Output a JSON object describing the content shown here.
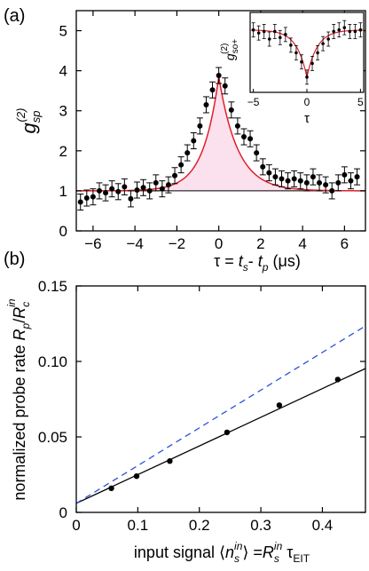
{
  "chart_data": [
    {
      "panel_label": "(a)",
      "type": "scatter",
      "xlabel": "τ = t_s - t_p (μs)",
      "ylabel": "g_sp^(2)",
      "xlim": [
        -6.8,
        7.0
      ],
      "ylim": [
        0,
        5.5
      ],
      "xticks": [
        -6,
        -4,
        -2,
        0,
        2,
        4,
        6
      ],
      "yticks": [
        0,
        1,
        2,
        3,
        4,
        5
      ],
      "baseline": 1.0,
      "fit_color": "#e0202a",
      "fill_color": "#fbe0ee",
      "series": [
        {
          "values_x": [
            -6.6,
            -6.3,
            -6.0,
            -5.7,
            -5.4,
            -5.1,
            -4.8,
            -4.5,
            -4.2,
            -3.9,
            -3.6,
            -3.3,
            -3.0,
            -2.7,
            -2.4,
            -2.1,
            -1.8,
            -1.5,
            -1.2,
            -0.9,
            -0.6,
            -0.3,
            0.0,
            0.3,
            0.6,
            0.9,
            1.2,
            1.5,
            1.8,
            2.1,
            2.4,
            2.7,
            3.0,
            3.3,
            3.6,
            3.9,
            4.2,
            4.5,
            4.8,
            5.1,
            5.4,
            5.7,
            6.0,
            6.3,
            6.6
          ],
          "values_y": [
            0.72,
            0.82,
            0.85,
            1.0,
            0.95,
            1.05,
            0.98,
            1.1,
            0.8,
            1.02,
            1.08,
            1.0,
            1.2,
            1.05,
            1.15,
            1.38,
            1.65,
            1.95,
            2.25,
            2.62,
            3.15,
            3.52,
            3.88,
            3.62,
            3.02,
            2.62,
            2.35,
            2.3,
            1.95,
            1.6,
            1.45,
            1.35,
            1.3,
            1.25,
            1.3,
            1.25,
            1.2,
            1.35,
            1.2,
            1.15,
            1.0,
            1.2,
            1.4,
            1.25,
            1.35
          ],
          "error": 0.2
        }
      ],
      "fit": {
        "type": "two-sided exponential",
        "peak": 3.85,
        "decay_left": 0.75,
        "decay_right": 0.9
      },
      "inset": {
        "xlabel": "τ",
        "ylabel": "g_so+^(2)",
        "xlim": [
          -5.3,
          5.3
        ],
        "xticks": [
          -5,
          0,
          5
        ],
        "points_x": [
          -5.0,
          -4.5,
          -4.0,
          -3.5,
          -3.0,
          -2.5,
          -2.0,
          -1.5,
          -1.0,
          -0.5,
          0.0,
          0.5,
          1.0,
          1.5,
          2.0,
          2.5,
          3.0,
          3.5,
          4.0,
          4.5,
          5.0
        ],
        "points_y": [
          0.92,
          0.88,
          0.9,
          0.8,
          0.9,
          0.82,
          0.86,
          0.72,
          0.62,
          0.5,
          0.3,
          0.48,
          0.62,
          0.74,
          0.8,
          0.9,
          0.92,
          0.95,
          0.9,
          0.9,
          0.92
        ]
      }
    },
    {
      "panel_label": "(b)",
      "type": "scatter",
      "xlabel": "input signal ⟨n_s^in⟩ = R_s^in τ_EIT",
      "ylabel": "normalized probe rate R_p/R_c^in",
      "xlim": [
        0,
        0.47
      ],
      "ylim": [
        0,
        0.15
      ],
      "xticks": [
        0,
        0.1,
        0.2,
        0.3,
        0.4
      ],
      "xtick_labels": [
        "0",
        "0.1",
        "0.2",
        "0.3",
        "0.4"
      ],
      "yticks": [
        0,
        0.05,
        0.1,
        0.15
      ],
      "ytick_labels": [
        "0",
        "0.05",
        "0.10",
        "0.15"
      ],
      "series": [
        {
          "x": [
            0.057,
            0.098,
            0.152,
            0.245,
            0.33,
            0.425
          ],
          "y": [
            0.016,
            0.024,
            0.034,
            0.053,
            0.071,
            0.088
          ]
        }
      ],
      "fit_line": {
        "intercept": 0.006,
        "slope": 0.19,
        "color": "#000000"
      },
      "dashed_line": {
        "intercept": 0.006,
        "slope": 0.25,
        "color": "#2a52d8"
      }
    }
  ]
}
